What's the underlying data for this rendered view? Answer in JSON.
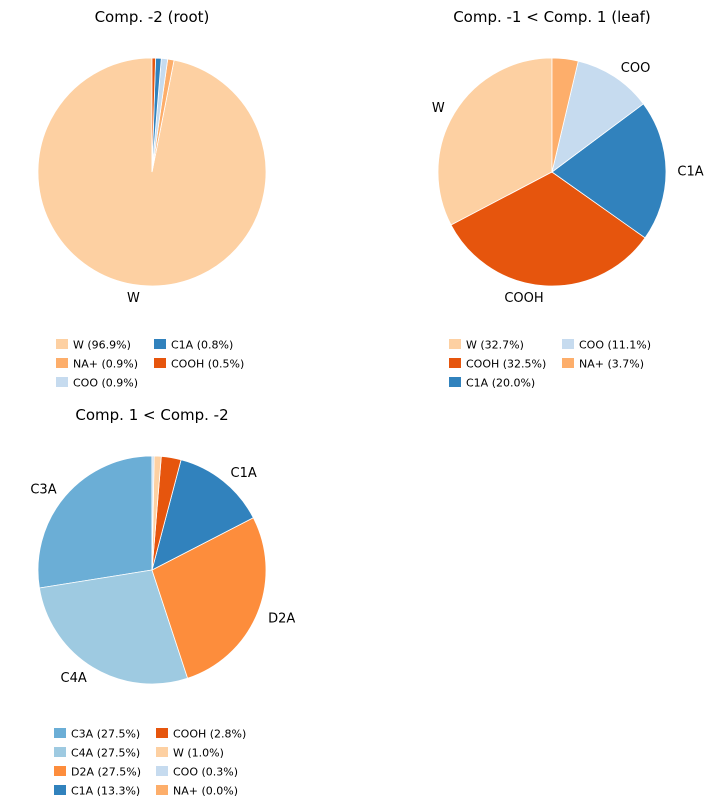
{
  "chart_data": [
    {
      "type": "pie",
      "title": "Comp. -2 (root)",
      "slices": [
        {
          "label": "W",
          "value": 96.9,
          "color": "#fdd0a2",
          "show_label": true,
          "legend": "W (96.9%)"
        },
        {
          "label": "NA+",
          "value": 0.9,
          "color": "#fdae6b",
          "show_label": false,
          "legend": "NA+ (0.9%)"
        },
        {
          "label": "COO",
          "value": 0.9,
          "color": "#c6dbef",
          "show_label": false,
          "legend": "COO (0.9%)"
        },
        {
          "label": "C1A",
          "value": 0.8,
          "color": "#3182bd",
          "show_label": false,
          "legend": "C1A (0.8%)"
        },
        {
          "label": "COOH",
          "value": 0.5,
          "color": "#e6550d",
          "show_label": false,
          "legend": "COOH (0.5%)"
        }
      ]
    },
    {
      "type": "pie",
      "title": "Comp. -1 < Comp. 1 (leaf)",
      "slices": [
        {
          "label": "W",
          "value": 32.7,
          "color": "#fdd0a2",
          "show_label": true,
          "legend": "W (32.7%)"
        },
        {
          "label": "COOH",
          "value": 32.5,
          "color": "#e6550d",
          "show_label": true,
          "legend": "COOH (32.5%)"
        },
        {
          "label": "C1A",
          "value": 20.0,
          "color": "#3182bd",
          "show_label": true,
          "legend": "C1A (20.0%)"
        },
        {
          "label": "COO",
          "value": 11.1,
          "color": "#c6dbef",
          "show_label": true,
          "legend": "COO (11.1%)"
        },
        {
          "label": "NA+",
          "value": 3.7,
          "color": "#fdae6b",
          "show_label": false,
          "legend": "NA+ (3.7%)"
        }
      ]
    },
    {
      "type": "pie",
      "title": "Comp. 1 < Comp. -2",
      "slices": [
        {
          "label": "C3A",
          "value": 27.5,
          "color": "#6baed6",
          "show_label": true,
          "legend": "C3A (27.5%)"
        },
        {
          "label": "C4A",
          "value": 27.5,
          "color": "#9ecae1",
          "show_label": true,
          "legend": "C4A (27.5%)"
        },
        {
          "label": "D2A",
          "value": 27.5,
          "color": "#fd8d3c",
          "show_label": true,
          "legend": "D2A (27.5%)"
        },
        {
          "label": "C1A",
          "value": 13.3,
          "color": "#3182bd",
          "show_label": true,
          "legend": "C1A (13.3%)"
        },
        {
          "label": "COOH",
          "value": 2.8,
          "color": "#e6550d",
          "show_label": false,
          "legend": "COOH (2.8%)"
        },
        {
          "label": "W",
          "value": 1.0,
          "color": "#fdd0a2",
          "show_label": false,
          "legend": "W (1.0%)"
        },
        {
          "label": "COO",
          "value": 0.3,
          "color": "#c6dbef",
          "show_label": false,
          "legend": "COO (0.3%)"
        },
        {
          "label": "NA+",
          "value": 0.0,
          "color": "#fdae6b",
          "show_label": false,
          "legend": "NA+ (0.0%)"
        }
      ]
    }
  ]
}
